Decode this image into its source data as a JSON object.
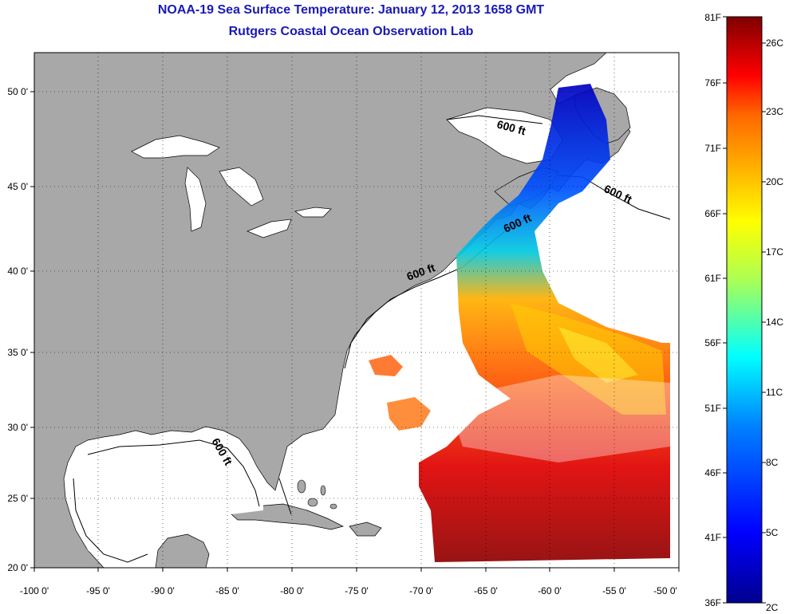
{
  "title": "NOAA-19 Sea Surface Temperature:  January 12, 2013 1658 GMT",
  "subtitle": "Rutgers Coastal Ocean Observation Lab",
  "axes": {
    "x_ticks": [
      "-100 0'",
      "-95 0'",
      "-90 0'",
      "-85 0'",
      "-80 0'",
      "-75 0'",
      "-70 0'",
      "-65 0'",
      "-60 0'",
      "-55 0'",
      "-50 0'"
    ],
    "y_ticks": [
      "50 0'",
      "45 0'",
      "40 0'",
      "35 0'",
      "30 0'",
      "25 0'",
      "20 0'"
    ]
  },
  "contour_labels": [
    "600 ft",
    "600 ft",
    "600 ft",
    "600 ft",
    "600 ft"
  ],
  "colorbar": {
    "fahrenheit_labels": [
      "81F",
      "76F",
      "71F",
      "66F",
      "61F",
      "56F",
      "51F",
      "46F",
      "41F",
      "36F"
    ],
    "celsius_labels": [
      "26C",
      "23C",
      "20C",
      "17C",
      "14C",
      "11C",
      "8C",
      "5C",
      "2C"
    ],
    "colors": [
      "#7f0000",
      "#b40000",
      "#ff0000",
      "#ff6a00",
      "#ffaa00",
      "#ffff00",
      "#aaff55",
      "#00ffff",
      "#0080ff",
      "#0000ff",
      "#00008f"
    ]
  },
  "colors": {
    "land": "#a8a8a8",
    "ocean": "#ffffff",
    "title": "#1a1ab4"
  }
}
